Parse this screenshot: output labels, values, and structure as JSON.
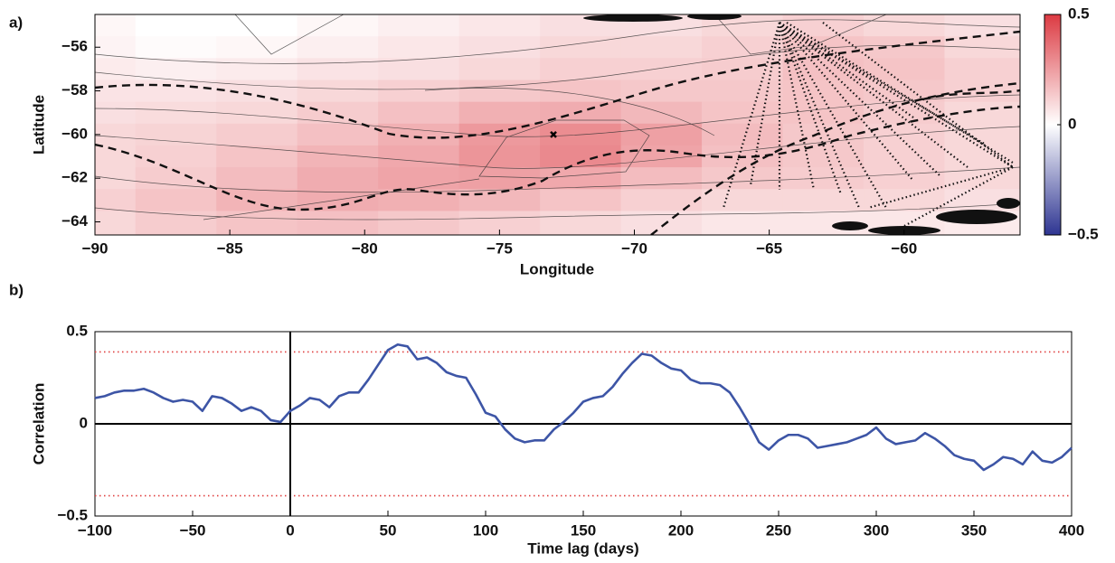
{
  "chart_data": [
    {
      "type": "contour",
      "label": "a)",
      "xlabel": "Longitude",
      "ylabel": "Latitude",
      "x": [
        -90,
        -87,
        -84,
        -81,
        -78,
        -75,
        -72,
        -69,
        -66,
        -63,
        -60,
        -57
      ],
      "y": [
        -55,
        -56,
        -57,
        -58,
        -59,
        -60,
        -61,
        -62,
        -63,
        -64
      ],
      "z": [
        [
          0.02,
          0.0,
          0.0,
          0.02,
          0.04,
          0.06,
          0.08,
          0.08,
          0.1,
          0.12,
          0.1,
          0.08
        ],
        [
          0.03,
          0.01,
          0.02,
          0.04,
          0.06,
          0.08,
          0.1,
          0.1,
          0.12,
          0.15,
          0.14,
          0.1
        ],
        [
          0.05,
          0.04,
          0.05,
          0.07,
          0.08,
          0.1,
          0.12,
          0.12,
          0.13,
          0.16,
          0.15,
          0.12
        ],
        [
          0.07,
          0.07,
          0.08,
          0.1,
          0.12,
          0.14,
          0.15,
          0.14,
          0.14,
          0.15,
          0.14,
          0.12
        ],
        [
          0.08,
          0.09,
          0.1,
          0.13,
          0.16,
          0.2,
          0.21,
          0.18,
          0.15,
          0.15,
          0.13,
          0.1
        ],
        [
          0.1,
          0.11,
          0.13,
          0.16,
          0.2,
          0.26,
          0.29,
          0.24,
          0.17,
          0.14,
          0.12,
          0.1
        ],
        [
          0.1,
          0.12,
          0.15,
          0.19,
          0.22,
          0.27,
          0.3,
          0.23,
          0.16,
          0.14,
          0.12,
          0.1
        ],
        [
          0.1,
          0.13,
          0.17,
          0.21,
          0.23,
          0.24,
          0.22,
          0.17,
          0.14,
          0.13,
          0.12,
          0.1
        ],
        [
          0.12,
          0.15,
          0.19,
          0.21,
          0.2,
          0.18,
          0.15,
          0.12,
          0.1,
          0.1,
          0.1,
          0.08
        ],
        [
          0.1,
          0.13,
          0.15,
          0.16,
          0.14,
          0.12,
          0.1,
          0.08,
          0.06,
          0.06,
          0.06,
          0.05
        ]
      ],
      "xlim": [
        -90,
        -55.7
      ],
      "ylim": [
        -64.6,
        -54.5
      ],
      "xticks": [
        {
          "value": -90,
          "label": "−90"
        },
        {
          "value": -85,
          "label": "−85"
        },
        {
          "value": -80,
          "label": "−80"
        },
        {
          "value": -75,
          "label": "−75"
        },
        {
          "value": -70,
          "label": "−70"
        },
        {
          "value": -65,
          "label": "−65"
        },
        {
          "value": -60,
          "label": "−60"
        }
      ],
      "yticks": [
        {
          "value": -64,
          "label": "−64"
        },
        {
          "value": -62,
          "label": "−62"
        },
        {
          "value": -60,
          "label": "−60"
        },
        {
          "value": -58,
          "label": "−58"
        },
        {
          "value": -56,
          "label": "−56"
        }
      ],
      "clim": [
        -0.5,
        0.5
      ],
      "cticks": [
        {
          "value": -0.5,
          "label": "−0.5"
        },
        0,
        0.5
      ],
      "colormap": [
        "#2e3592",
        "#ffffff",
        "#dc3a42"
      ],
      "marker": {
        "x": -73,
        "y": -60
      }
    },
    {
      "type": "line",
      "label": "b)",
      "xlabel": "Time lag (days)",
      "ylabel": "Correlation",
      "x": [
        -100,
        -95,
        -90,
        -85,
        -80,
        -75,
        -70,
        -65,
        -60,
        -55,
        -50,
        -45,
        -40,
        -35,
        -30,
        -25,
        -20,
        -15,
        -10,
        -5,
        0,
        5,
        10,
        15,
        20,
        25,
        30,
        35,
        40,
        45,
        50,
        55,
        60,
        65,
        70,
        75,
        80,
        85,
        90,
        95,
        100,
        105,
        110,
        115,
        120,
        125,
        130,
        135,
        140,
        145,
        150,
        155,
        160,
        165,
        170,
        175,
        180,
        185,
        190,
        195,
        200,
        205,
        210,
        215,
        220,
        225,
        230,
        235,
        240,
        245,
        250,
        255,
        260,
        265,
        270,
        275,
        280,
        285,
        290,
        295,
        300,
        305,
        310,
        315,
        320,
        325,
        330,
        335,
        340,
        345,
        350,
        355,
        360,
        365,
        370,
        375,
        380,
        385,
        390,
        395,
        400
      ],
      "series": [
        {
          "color": "#3d55a6",
          "values": [
            0.14,
            0.15,
            0.17,
            0.18,
            0.18,
            0.19,
            0.17,
            0.14,
            0.12,
            0.13,
            0.12,
            0.07,
            0.15,
            0.14,
            0.11,
            0.07,
            0.09,
            0.07,
            0.02,
            0.01,
            0.07,
            0.1,
            0.14,
            0.13,
            0.09,
            0.15,
            0.17,
            0.17,
            0.24,
            0.32,
            0.4,
            0.43,
            0.42,
            0.35,
            0.36,
            0.33,
            0.28,
            0.26,
            0.25,
            0.16,
            0.06,
            0.04,
            -0.03,
            -0.08,
            -0.1,
            -0.09,
            -0.09,
            -0.03,
            0.01,
            0.06,
            0.12,
            0.14,
            0.15,
            0.2,
            0.27,
            0.33,
            0.38,
            0.37,
            0.33,
            0.3,
            0.29,
            0.24,
            0.22,
            0.22,
            0.21,
            0.17,
            0.09,
            0.0,
            -0.1,
            -0.14,
            -0.09,
            -0.06,
            -0.06,
            -0.08,
            -0.13,
            -0.12,
            -0.11,
            -0.1,
            -0.08,
            -0.06,
            -0.02,
            -0.08,
            -0.11,
            -0.1,
            -0.09,
            -0.05,
            -0.08,
            -0.12,
            -0.17,
            -0.19,
            -0.2,
            -0.25,
            -0.22,
            -0.18,
            -0.19,
            -0.22,
            -0.15,
            -0.2,
            -0.21,
            -0.18,
            -0.13
          ]
        }
      ],
      "xlim": [
        -100,
        400
      ],
      "ylim": [
        -0.5,
        0.5
      ],
      "xticks": [
        {
          "value": -100,
          "label": "−100"
        },
        {
          "value": -50,
          "label": "−50"
        },
        0,
        50,
        100,
        150,
        200,
        250,
        300,
        350,
        400
      ],
      "yticks": [
        {
          "value": -0.5,
          "label": "−0.5"
        },
        0,
        0.5
      ],
      "hlines": [
        {
          "value": 0.39,
          "color": "#e04040",
          "style": "dotted"
        },
        {
          "value": -0.39,
          "color": "#e04040",
          "style": "dotted"
        },
        {
          "value": 0,
          "color": "#000000",
          "style": "solid"
        }
      ],
      "vlines": [
        {
          "value": 0,
          "color": "#000000",
          "style": "solid"
        }
      ]
    }
  ]
}
